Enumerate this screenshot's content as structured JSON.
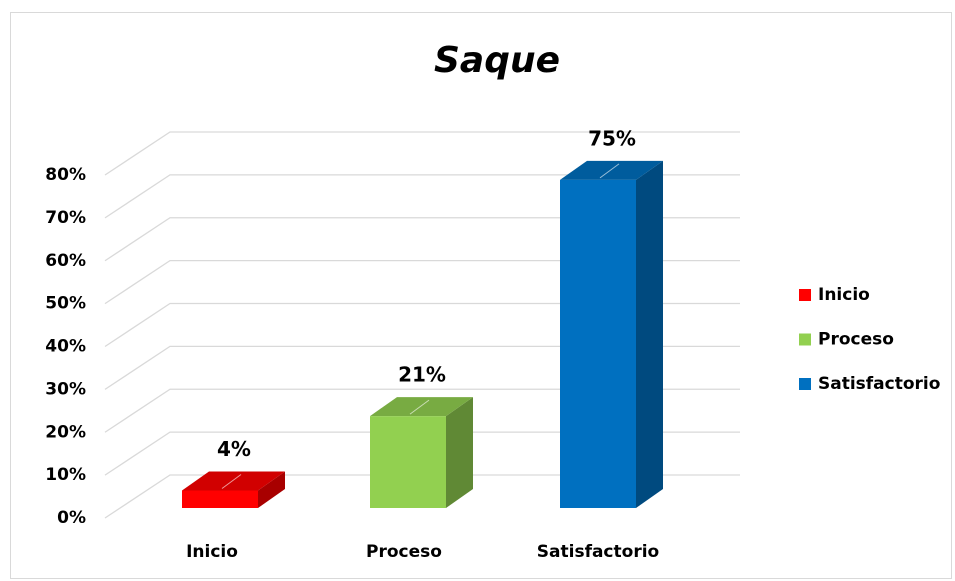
{
  "chart_data": {
    "type": "bar3d",
    "title": "Saque",
    "categories": [
      "Inicio",
      "Proceso",
      "Satisfactorio"
    ],
    "values": [
      4,
      21,
      75
    ],
    "value_labels": [
      "4%",
      "21%",
      "75%"
    ],
    "colors": [
      "#ff0000",
      "#92d050",
      "#0070c0"
    ],
    "ylim": [
      0,
      80
    ],
    "yticks": [
      {
        "value": 0,
        "label": "0%"
      },
      {
        "value": 10,
        "label": "10%"
      },
      {
        "value": 20,
        "label": "20%"
      },
      {
        "value": 30,
        "label": "30%"
      },
      {
        "value": 40,
        "label": "40%"
      },
      {
        "value": 50,
        "label": "50%"
      },
      {
        "value": 60,
        "label": "60%"
      },
      {
        "value": 70,
        "label": "70%"
      },
      {
        "value": 80,
        "label": "80%"
      }
    ],
    "grid": true,
    "legend": "right"
  }
}
